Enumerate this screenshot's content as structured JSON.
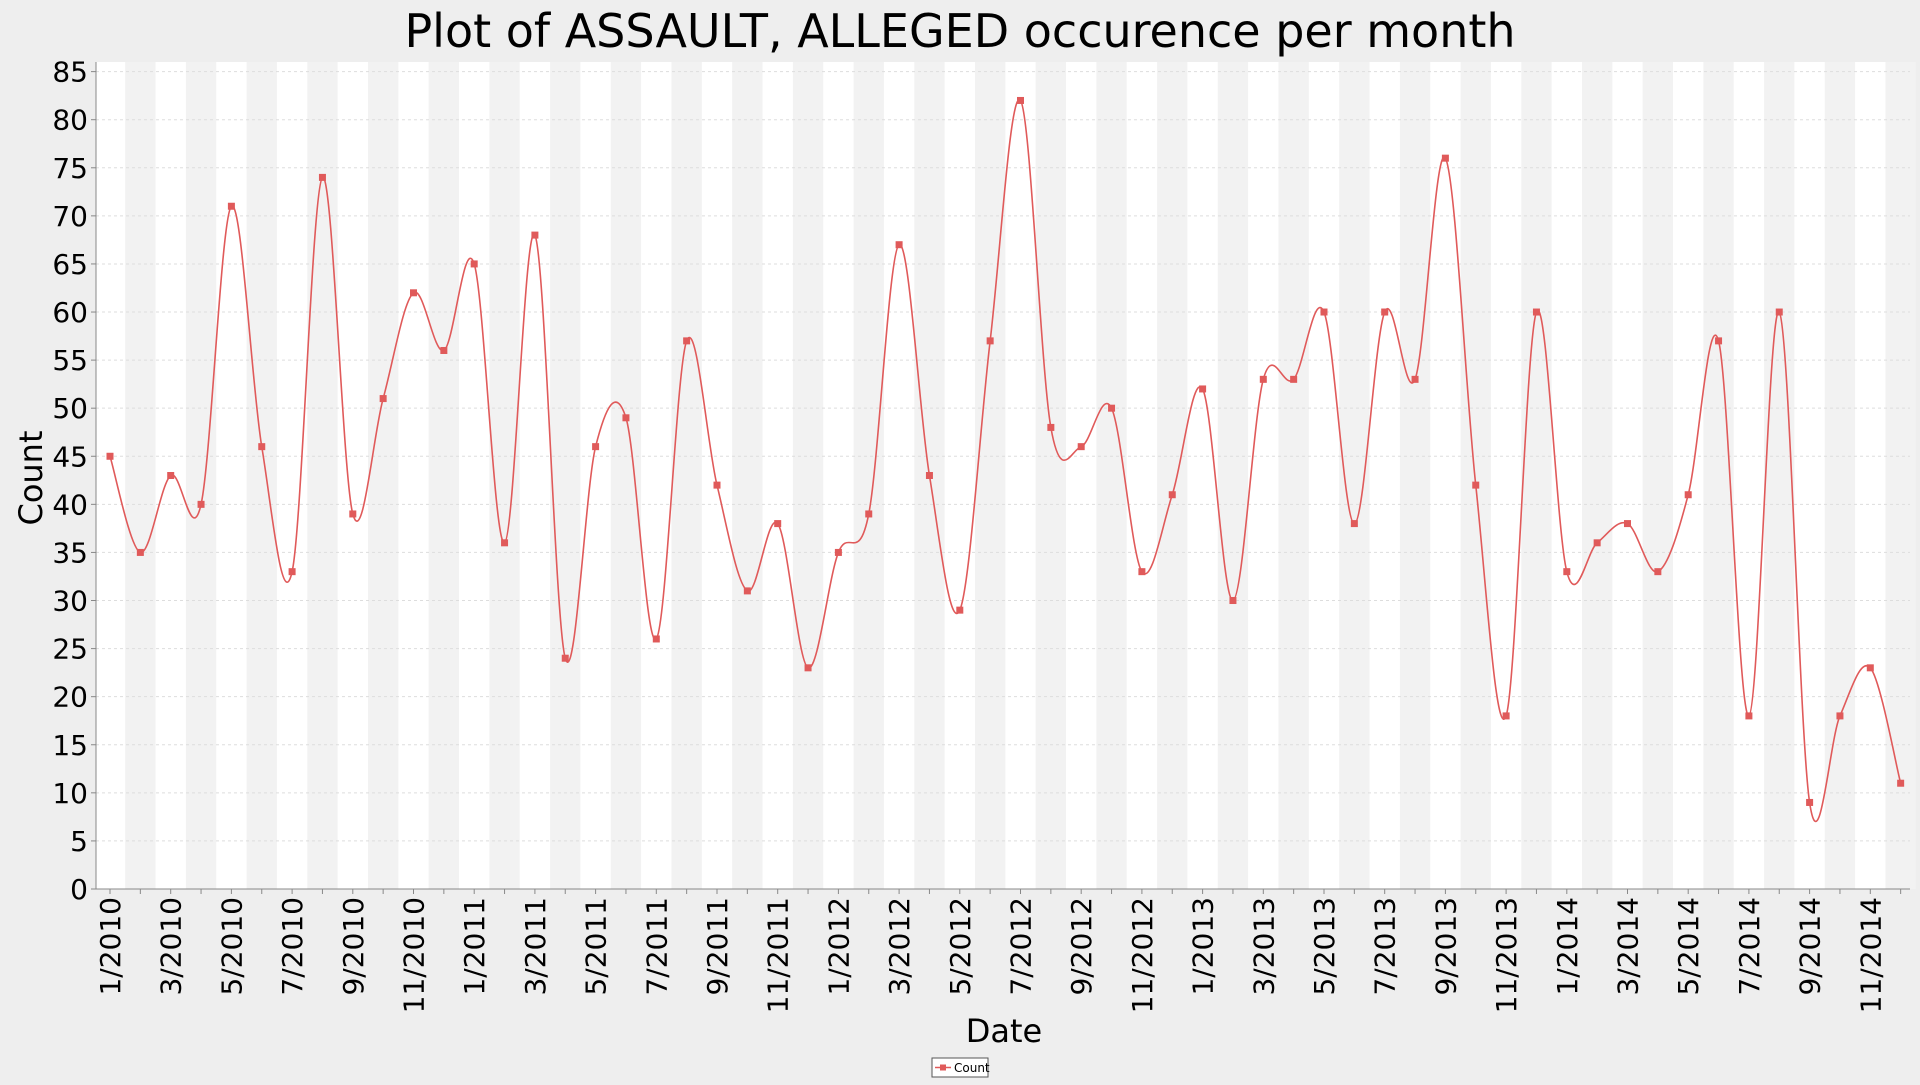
{
  "chart_data": {
    "type": "line",
    "title": "Plot of ASSAULT, ALLEGED occurence per month",
    "xlabel": "Date",
    "ylabel": "Count",
    "ylim": [
      0,
      86
    ],
    "yticks": [
      0,
      5,
      10,
      15,
      20,
      25,
      30,
      35,
      40,
      45,
      50,
      55,
      60,
      65,
      70,
      75,
      80,
      85
    ],
    "x_tick_labels": [
      "1/2010",
      "3/2010",
      "5/2010",
      "7/2010",
      "9/2010",
      "11/2010",
      "1/2011",
      "3/2011",
      "5/2011",
      "7/2011",
      "9/2011",
      "11/2011",
      "1/2012",
      "3/2012",
      "5/2012",
      "7/2012",
      "9/2012",
      "11/2012",
      "1/2013",
      "3/2013",
      "5/2013",
      "7/2013",
      "9/2013",
      "11/2013",
      "1/2014",
      "3/2014",
      "5/2014",
      "7/2014",
      "9/2014",
      "11/2014"
    ],
    "x": [
      "1/2010",
      "2/2010",
      "3/2010",
      "4/2010",
      "5/2010",
      "6/2010",
      "7/2010",
      "8/2010",
      "9/2010",
      "10/2010",
      "11/2010",
      "12/2010",
      "1/2011",
      "2/2011",
      "3/2011",
      "4/2011",
      "5/2011",
      "6/2011",
      "7/2011",
      "8/2011",
      "9/2011",
      "10/2011",
      "11/2011",
      "12/2011",
      "1/2012",
      "2/2012",
      "3/2012",
      "4/2012",
      "5/2012",
      "6/2012",
      "7/2012",
      "8/2012",
      "9/2012",
      "10/2012",
      "11/2012",
      "12/2012",
      "1/2013",
      "2/2013",
      "3/2013",
      "4/2013",
      "5/2013",
      "6/2013",
      "7/2013",
      "8/2013",
      "9/2013",
      "10/2013",
      "11/2013",
      "12/2013",
      "1/2014",
      "2/2014",
      "3/2014",
      "4/2014",
      "5/2014",
      "6/2014",
      "7/2014",
      "8/2014",
      "9/2014",
      "10/2014",
      "11/2014",
      "12/2014"
    ],
    "series": [
      {
        "name": "Count",
        "color": "#e05a5a",
        "values": [
          45,
          35,
          43,
          40,
          71,
          46,
          33,
          74,
          39,
          51,
          62,
          56,
          65,
          36,
          68,
          24,
          46,
          49,
          26,
          57,
          42,
          31,
          38,
          23,
          35,
          39,
          67,
          43,
          29,
          57,
          82,
          48,
          46,
          50,
          33,
          41,
          52,
          30,
          53,
          53,
          60,
          38,
          60,
          53,
          76,
          42,
          18,
          60,
          33,
          36,
          38,
          33,
          41,
          57,
          18,
          60,
          9,
          18,
          23,
          11
        ]
      }
    ],
    "grid": true,
    "legend": "bottom-center",
    "colors": {
      "background": "#eeeeee",
      "plot_bg": "#ffffff",
      "band": "#f2f2f2",
      "grid": "#dddddd",
      "line": "#e05a5a"
    }
  }
}
